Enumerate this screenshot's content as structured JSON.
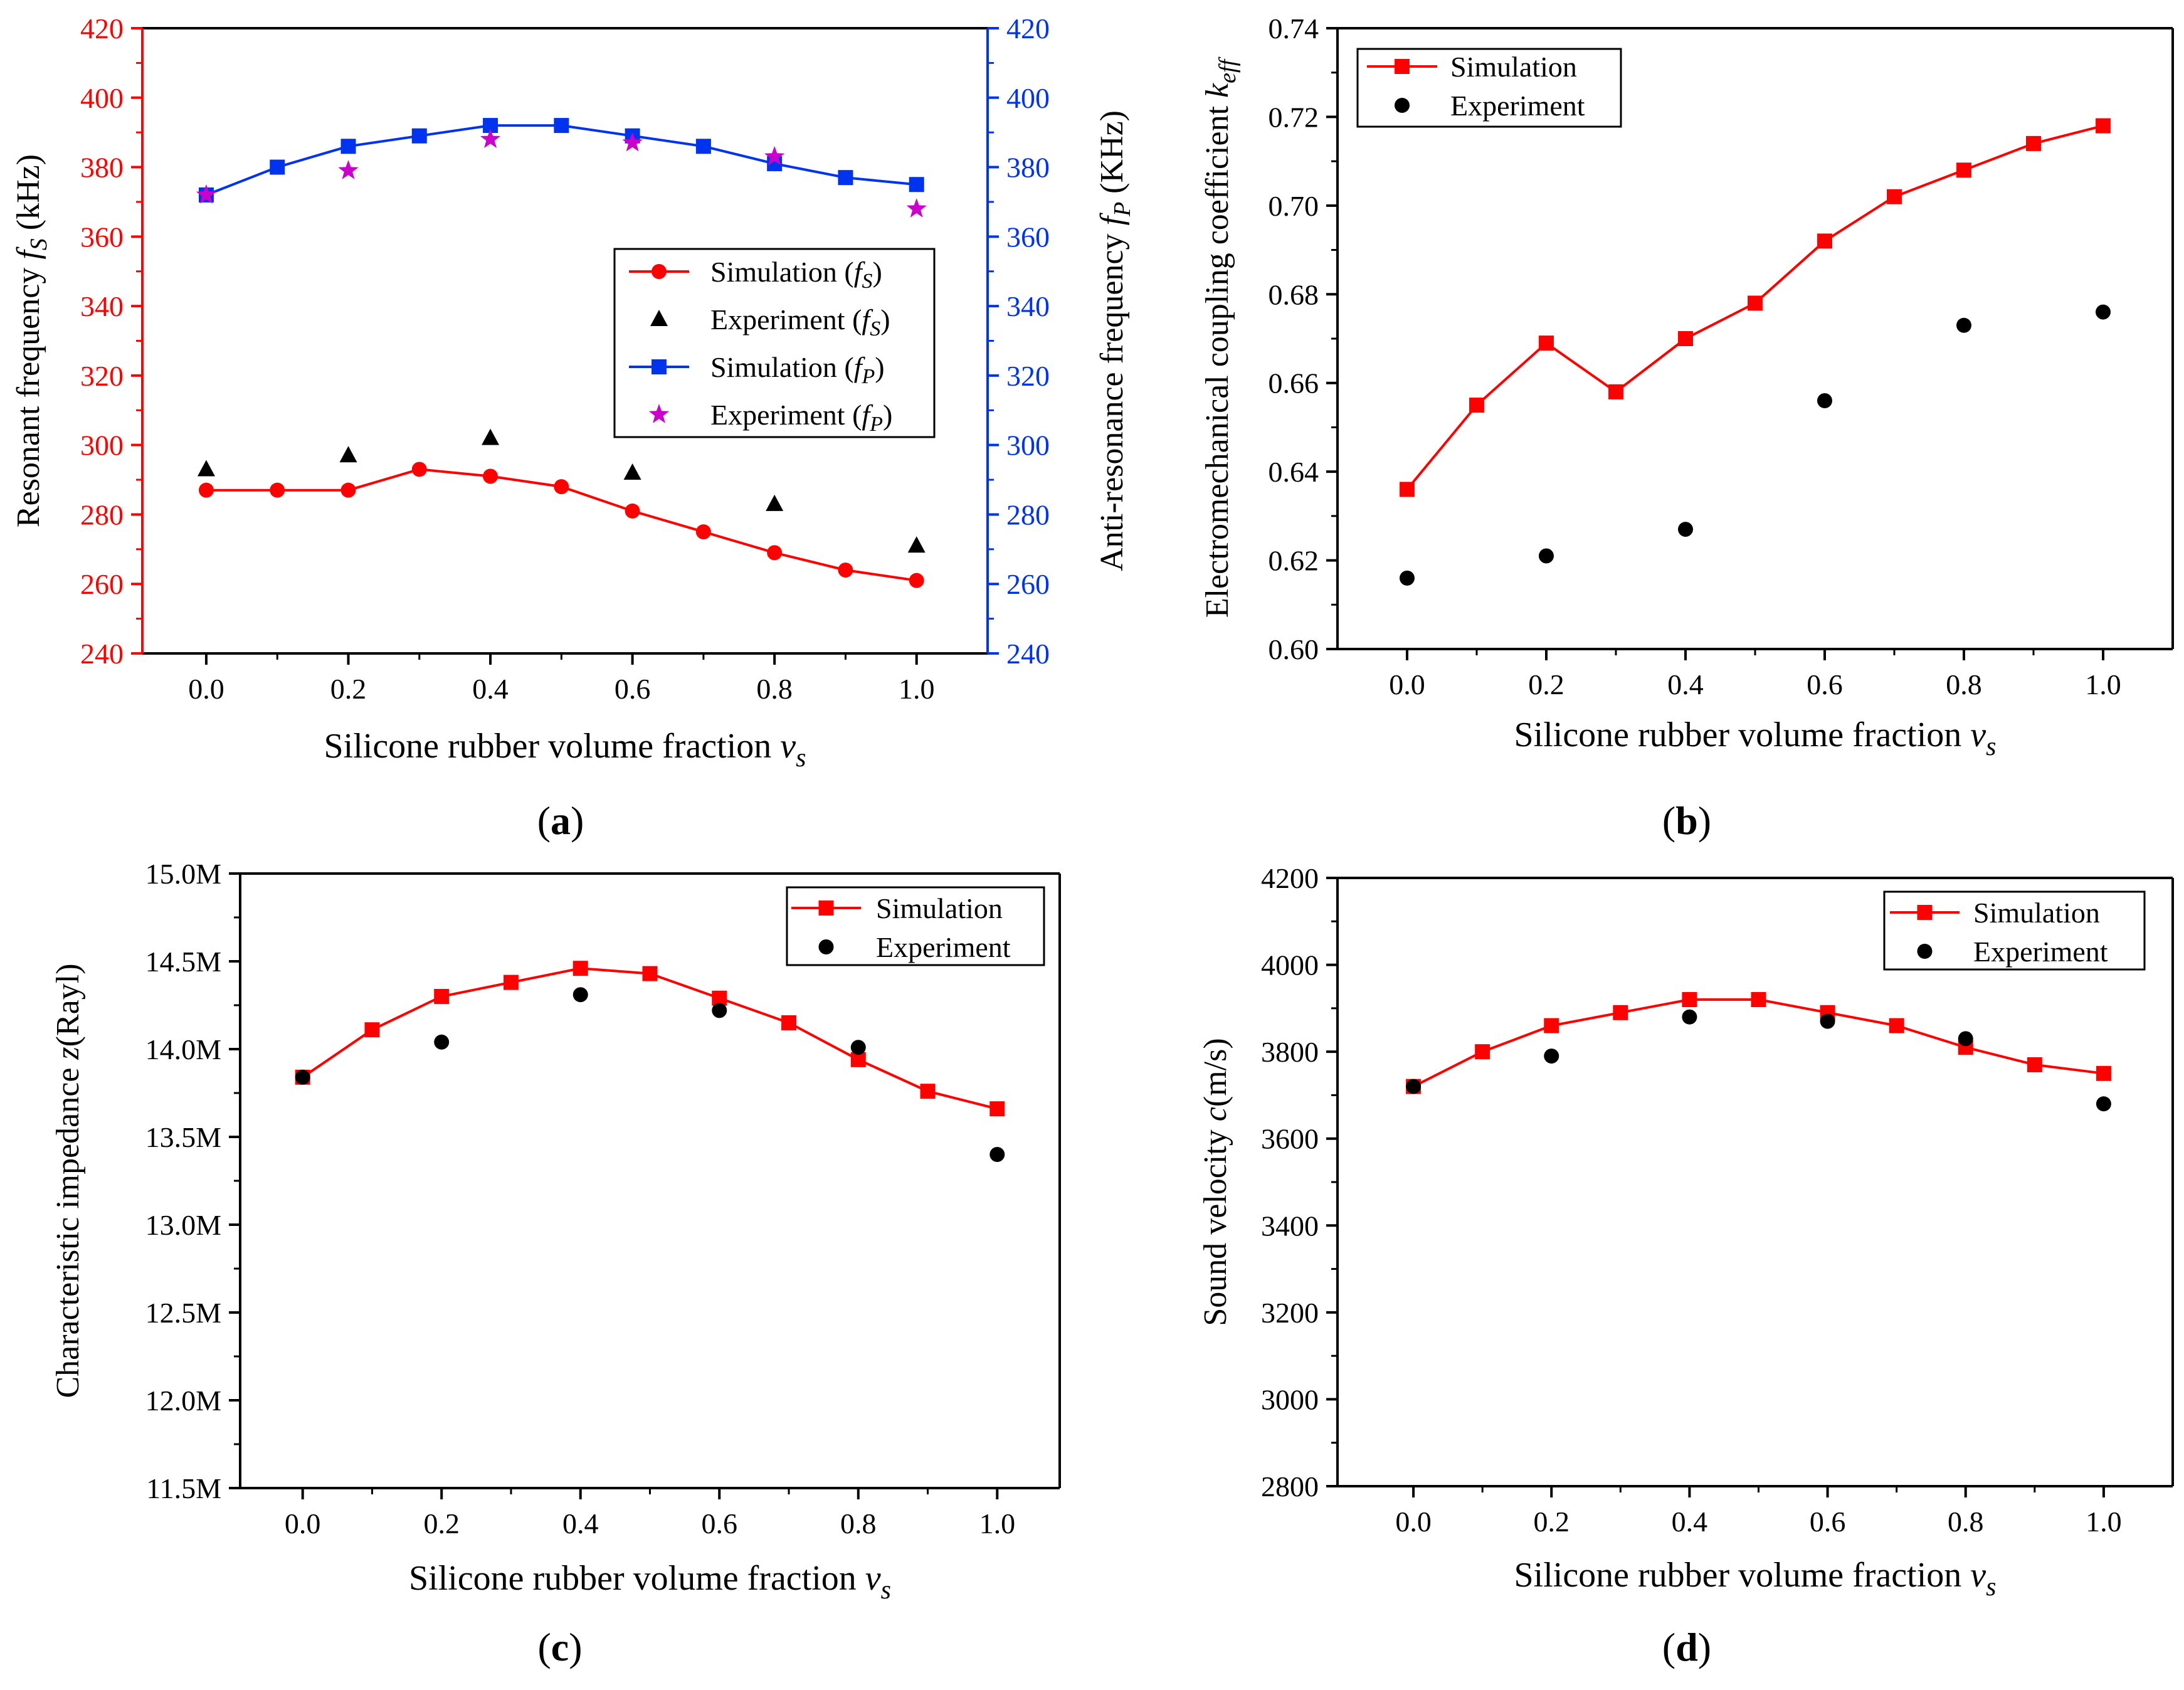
{
  "chart_data": [
    {
      "type": "line",
      "panel_label": "a",
      "xlabel": "Silicone rubber volume fraction",
      "xlabel_var": "v",
      "xlabel_sub": "s",
      "ylabel": "Resonant frequency",
      "ylabel_var": "f",
      "ylabel_sub": "S",
      "ylabel_unit": "(kHz)",
      "y2label": "Anti-resonance frequency",
      "y2label_var": "f",
      "y2label_sub": "P",
      "y2label_unit": "(KHz)",
      "xlim": [
        -0.09,
        1.1
      ],
      "ylim": [
        240,
        420
      ],
      "y2lim": [
        240,
        420
      ],
      "xticks": [
        0.0,
        0.2,
        0.4,
        0.6,
        0.8,
        1.0
      ],
      "xtick_labels": [
        "0.0",
        "0.2",
        "0.4",
        "0.6",
        "0.8",
        "1.0"
      ],
      "yticks": [
        240,
        260,
        280,
        300,
        320,
        340,
        360,
        380,
        400,
        420
      ],
      "ytick_labels": [
        "240",
        "260",
        "280",
        "300",
        "320",
        "340",
        "360",
        "380",
        "400",
        "420"
      ],
      "y2ticks": [
        240,
        260,
        280,
        300,
        320,
        340,
        360,
        380,
        400,
        420
      ],
      "y2tick_labels": [
        "240",
        "260",
        "280",
        "300",
        "320",
        "340",
        "360",
        "380",
        "400",
        "420"
      ],
      "legend_position": "right-middle",
      "series": [
        {
          "name": "Simulation",
          "legend_var": "f",
          "legend_sub": "S",
          "marker": "circle",
          "color": "#ff0000",
          "line": true,
          "axis": "left",
          "x": [
            0.0,
            0.1,
            0.2,
            0.3,
            0.4,
            0.5,
            0.6,
            0.7,
            0.8,
            0.9,
            1.0
          ],
          "y": [
            287,
            287,
            287,
            293,
            291,
            288,
            281,
            275,
            269,
            264,
            261
          ]
        },
        {
          "name": "Experiment",
          "legend_var": "f",
          "legend_sub": "S",
          "marker": "triangle",
          "color": "#000000",
          "line": false,
          "axis": "left",
          "x": [
            0.0,
            0.2,
            0.4,
            0.6,
            0.8,
            1.0
          ],
          "y": [
            293,
            297,
            302,
            292,
            283,
            271
          ]
        },
        {
          "name": "Simulation",
          "legend_var": "f",
          "legend_sub": "P",
          "marker": "square",
          "color": "#0033ee",
          "line": true,
          "axis": "right",
          "x": [
            0.0,
            0.1,
            0.2,
            0.3,
            0.4,
            0.5,
            0.6,
            0.7,
            0.8,
            0.9,
            1.0
          ],
          "y": [
            372,
            380,
            386,
            389,
            392,
            392,
            389,
            386,
            381,
            377,
            375
          ]
        },
        {
          "name": "Experiment",
          "legend_var": "f",
          "legend_sub": "P",
          "marker": "star",
          "color": "#cc00cc",
          "line": false,
          "axis": "right",
          "x": [
            0.0,
            0.2,
            0.4,
            0.6,
            0.8,
            1.0
          ],
          "y": [
            372,
            379,
            388,
            387,
            383,
            368
          ]
        }
      ]
    },
    {
      "type": "line",
      "panel_label": "b",
      "xlabel": "Silicone rubber volume fraction",
      "xlabel_var": "v",
      "xlabel_sub": "s",
      "ylabel": "Electromechanical coupling coefficient",
      "ylabel_var": "k",
      "ylabel_sub": "eff",
      "ylabel_unit": "",
      "xlim": [
        -0.1,
        1.1
      ],
      "ylim": [
        0.6,
        0.74
      ],
      "xticks": [
        0.0,
        0.2,
        0.4,
        0.6,
        0.8,
        1.0
      ],
      "xtick_labels": [
        "0.0",
        "0.2",
        "0.4",
        "0.6",
        "0.8",
        "1.0"
      ],
      "yticks": [
        0.6,
        0.62,
        0.64,
        0.66,
        0.68,
        0.7,
        0.72,
        0.74
      ],
      "ytick_labels": [
        "0.60",
        "0.62",
        "0.64",
        "0.66",
        "0.68",
        "0.70",
        "0.72",
        "0.74"
      ],
      "legend_position": "top-left",
      "series": [
        {
          "name": "Simulation",
          "marker": "square",
          "color": "#ff0000",
          "line": true,
          "x": [
            0.0,
            0.1,
            0.2,
            0.3,
            0.4,
            0.5,
            0.6,
            0.7,
            0.8,
            0.9,
            1.0
          ],
          "y": [
            0.636,
            0.655,
            0.669,
            0.658,
            0.67,
            0.678,
            0.692,
            0.702,
            0.708,
            0.714,
            0.718
          ]
        },
        {
          "name": "Experiment",
          "marker": "circle",
          "color": "#000000",
          "line": false,
          "x": [
            0.0,
            0.2,
            0.4,
            0.6,
            0.8,
            1.0
          ],
          "y": [
            0.616,
            0.621,
            0.627,
            0.656,
            0.673,
            0.676
          ]
        }
      ]
    },
    {
      "type": "line",
      "panel_label": "c",
      "xlabel": "Silicone rubber volume fraction",
      "xlabel_var": "v",
      "xlabel_sub": "s",
      "ylabel": "Characteristic impedance",
      "ylabel_var": "z",
      "ylabel_sub": "",
      "ylabel_unit": "(Rayl)",
      "xlim": [
        -0.09,
        1.09
      ],
      "ylim": [
        11.5,
        15.0
      ],
      "xticks": [
        0.0,
        0.2,
        0.4,
        0.6,
        0.8,
        1.0
      ],
      "xtick_labels": [
        "0.0",
        "0.2",
        "0.4",
        "0.6",
        "0.8",
        "1.0"
      ],
      "yticks": [
        11.5,
        12.0,
        12.5,
        13.0,
        13.5,
        14.0,
        14.5,
        15.0
      ],
      "ytick_labels": [
        "11.5M",
        "12.0M",
        "12.5M",
        "13.0M",
        "13.5M",
        "14.0M",
        "14.5M",
        "15.0M"
      ],
      "legend_position": "top-right",
      "series": [
        {
          "name": "Simulation",
          "marker": "square",
          "color": "#ff0000",
          "line": true,
          "x": [
            0.0,
            0.1,
            0.2,
            0.3,
            0.4,
            0.5,
            0.6,
            0.7,
            0.8,
            0.9,
            1.0
          ],
          "y": [
            13.84,
            14.11,
            14.3,
            14.38,
            14.46,
            14.43,
            14.29,
            14.15,
            13.94,
            13.76,
            13.66
          ]
        },
        {
          "name": "Experiment",
          "marker": "circle",
          "color": "#000000",
          "line": false,
          "x": [
            0.0,
            0.2,
            0.4,
            0.6,
            0.8,
            1.0
          ],
          "y": [
            13.84,
            14.04,
            14.31,
            14.22,
            14.01,
            13.4
          ]
        }
      ]
    },
    {
      "type": "line",
      "panel_label": "d",
      "xlabel": "Silicone rubber volume fraction",
      "xlabel_var": "v",
      "xlabel_sub": "s",
      "ylabel": "Sound velocity",
      "ylabel_var": "c",
      "ylabel_sub": "",
      "ylabel_unit": "(m/s)",
      "xlim": [
        -0.11,
        1.1
      ],
      "ylim": [
        2800,
        4200
      ],
      "xticks": [
        0.0,
        0.2,
        0.4,
        0.6,
        0.8,
        1.0
      ],
      "xtick_labels": [
        "0.0",
        "0.2",
        "0.4",
        "0.6",
        "0.8",
        "1.0"
      ],
      "yticks": [
        2800,
        3000,
        3200,
        3400,
        3600,
        3800,
        4000,
        4200
      ],
      "ytick_labels": [
        "2800",
        "3000",
        "3200",
        "3400",
        "3600",
        "3800",
        "4000",
        "4200"
      ],
      "legend_position": "top-right",
      "series": [
        {
          "name": "Simulation",
          "marker": "square",
          "color": "#ff0000",
          "line": true,
          "x": [
            0.0,
            0.1,
            0.2,
            0.3,
            0.4,
            0.5,
            0.6,
            0.7,
            0.8,
            0.9,
            1.0
          ],
          "y": [
            3720,
            3800,
            3860,
            3890,
            3920,
            3920,
            3890,
            3860,
            3810,
            3770,
            3750
          ]
        },
        {
          "name": "Experiment",
          "marker": "circle",
          "color": "#000000",
          "line": false,
          "x": [
            0.0,
            0.2,
            0.4,
            0.6,
            0.8,
            1.0
          ],
          "y": [
            3720,
            3790,
            3880,
            3870,
            3830,
            3680
          ]
        }
      ]
    }
  ]
}
